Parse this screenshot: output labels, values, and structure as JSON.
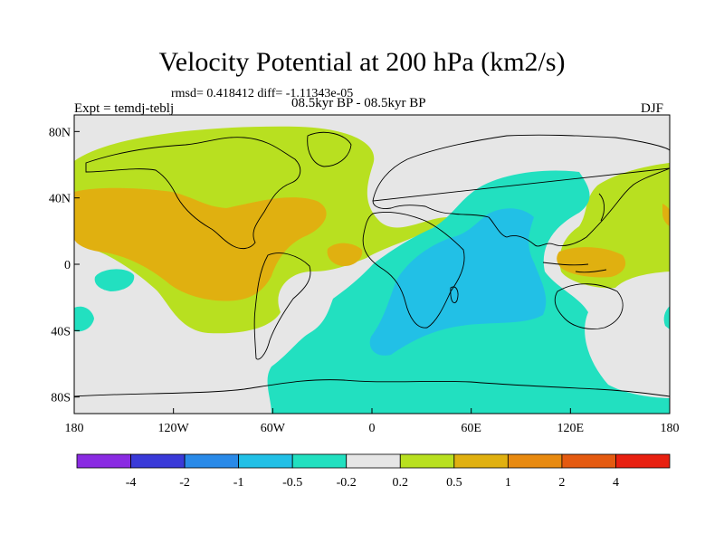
{
  "title": "Velocity Potential at 200 hPa (km2/s)",
  "stats": "rmsd= 0.418412 diff= -1.11343e-05",
  "period": "08.5kyr BP - 08.5kyr BP",
  "experiment": "Expt = temdj-teblj",
  "season": "DJF",
  "map": {
    "projection": "equirectangular",
    "lon_range": [
      -180,
      180
    ],
    "lat_range": [
      -90,
      90
    ],
    "lat_ticks": [
      {
        "value": 80,
        "label": "80N"
      },
      {
        "value": 40,
        "label": "40N"
      },
      {
        "value": 0,
        "label": "0"
      },
      {
        "value": -40,
        "label": "40S"
      },
      {
        "value": -80,
        "label": "80S"
      }
    ],
    "lon_ticks": [
      {
        "value": -180,
        "label": "180"
      },
      {
        "value": -120,
        "label": "120W"
      },
      {
        "value": -60,
        "label": "60W"
      },
      {
        "value": 0,
        "label": "0"
      },
      {
        "value": 60,
        "label": "60E"
      },
      {
        "value": 120,
        "label": "120E"
      },
      {
        "value": 180,
        "label": "180"
      }
    ]
  },
  "colorbar": {
    "colors": [
      "#8a2be2",
      "#3a3ad8",
      "#2a8ae8",
      "#22c0e6",
      "#22e0c0",
      "#e6e6e6",
      "#b8e020",
      "#e0b010",
      "#e88a10",
      "#e45a10",
      "#e82010"
    ],
    "labels": [
      "-4",
      "-2",
      "-1",
      "-0.5",
      "-0.2",
      "0.2",
      "0.5",
      "1",
      "2",
      "4"
    ]
  }
}
